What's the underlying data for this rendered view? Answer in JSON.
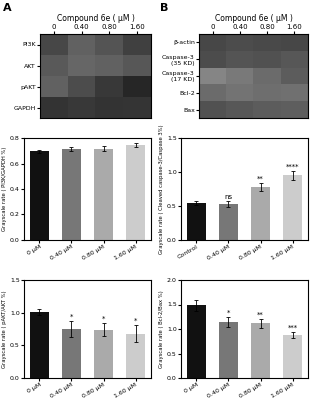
{
  "chart_data": [
    {
      "type": "heatmap",
      "title": "Compound 6e ( μM )",
      "annotations": [
        "A"
      ],
      "categories": [
        "0",
        "0.40",
        "0.80",
        "1.60"
      ],
      "rows": [
        "PI3K",
        "AKT",
        "pAKT",
        "GAPDH"
      ],
      "values": [
        [
          0.28,
          0.38,
          0.33,
          0.25
        ],
        [
          0.35,
          0.4,
          0.38,
          0.34
        ],
        [
          0.38,
          0.3,
          0.22,
          0.15
        ],
        [
          0.2,
          0.22,
          0.2,
          0.21
        ]
      ],
      "clim": [
        0.0,
        1.0
      ]
    },
    {
      "type": "bar",
      "categories": [
        "0 μM",
        "0.40 μM",
        "0.80 μM",
        "1.60 μM"
      ],
      "values": [
        0.695,
        0.715,
        0.715,
        0.745
      ],
      "errors": [
        0.012,
        0.018,
        0.02,
        0.015
      ],
      "colors": [
        "#111111",
        "#777777",
        "#aaaaaa",
        "#cccccc"
      ],
      "ylabel": "Grayscale rate ( PI3K/GAPDH %)",
      "ylim": [
        0.0,
        0.8
      ],
      "yticks": [
        0.0,
        0.2,
        0.4,
        0.6,
        0.8
      ]
    },
    {
      "type": "bar",
      "categories": [
        "0 μM",
        "0.40 μM",
        "0.80 μM",
        "1.60 μM"
      ],
      "values": [
        1.01,
        0.75,
        0.74,
        0.68
      ],
      "errors": [
        0.05,
        0.12,
        0.1,
        0.13
      ],
      "colors": [
        "#111111",
        "#777777",
        "#aaaaaa",
        "#cccccc"
      ],
      "ylabel": "Grayscale rate ( pAKT/AKT %)",
      "ylim": [
        0.0,
        1.5
      ],
      "yticks": [
        0.0,
        0.5,
        1.0,
        1.5
      ],
      "significance": [
        null,
        "*",
        "*",
        "*"
      ]
    },
    {
      "type": "heatmap",
      "title": "Compound 6e ( μM )",
      "annotations": [
        "B"
      ],
      "categories": [
        "0",
        "0.40",
        "0.80",
        "1.60"
      ],
      "rows": [
        "β-actin",
        "Caspase-3\n(35 KD)",
        "Caspase-3\n(17 KD)",
        "Bcl-2",
        "Bax"
      ],
      "values": [
        [
          0.28,
          0.3,
          0.29,
          0.28
        ],
        [
          0.3,
          0.33,
          0.32,
          0.34
        ],
        [
          0.52,
          0.48,
          0.42,
          0.36
        ],
        [
          0.42,
          0.45,
          0.43,
          0.44
        ],
        [
          0.32,
          0.34,
          0.36,
          0.37
        ]
      ],
      "clim": [
        0.0,
        1.0
      ]
    },
    {
      "type": "bar",
      "categories": [
        "Control",
        "0.40 μM",
        "0.80 μM",
        "1.60 μM"
      ],
      "values": [
        0.55,
        0.53,
        0.78,
        0.95
      ],
      "errors": [
        0.03,
        0.04,
        0.06,
        0.07
      ],
      "colors": [
        "#111111",
        "#777777",
        "#aaaaaa",
        "#cccccc"
      ],
      "ylabel": "Grayscale rate ( Cleaved caspase-3/Caspase 3%)",
      "ylim": [
        0.0,
        1.5
      ],
      "yticks": [
        0.0,
        0.5,
        1.0,
        1.5
      ],
      "significance": [
        null,
        "ns",
        "**",
        "****"
      ]
    },
    {
      "type": "bar",
      "categories": [
        "0 μM",
        "0.40 μM",
        "0.80 μM",
        "1.60 μM"
      ],
      "values": [
        1.48,
        1.15,
        1.12,
        0.88
      ],
      "errors": [
        0.12,
        0.1,
        0.09,
        0.06
      ],
      "colors": [
        "#111111",
        "#777777",
        "#aaaaaa",
        "#cccccc"
      ],
      "ylabel": "Grayscale rate ( Bcl-2/Bax %)",
      "ylim": [
        0.0,
        2.0
      ],
      "yticks": [
        0.0,
        0.5,
        1.0,
        1.5,
        2.0
      ],
      "significance": [
        null,
        "*",
        "**",
        "***"
      ]
    }
  ]
}
